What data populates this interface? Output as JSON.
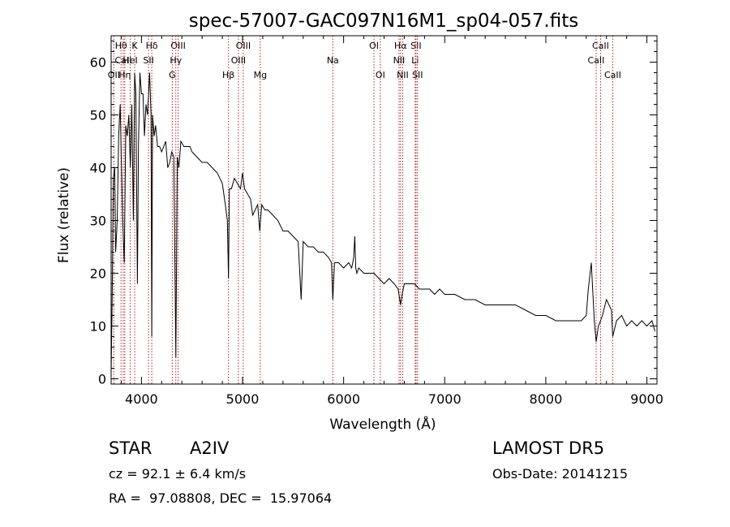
{
  "chart_data": {
    "type": "line",
    "title": "spec-57007-GAC097N16M1_sp04-057.fits",
    "xlabel": "Wavelength (Å)",
    "ylabel": "Flux (relative)",
    "xlim": [
      3700,
      9100
    ],
    "ylim": [
      -1,
      65
    ],
    "xticks": [
      4000,
      5000,
      6000,
      7000,
      8000,
      9000
    ],
    "xtick_labels": [
      "4000",
      "5000",
      "6000",
      "7000",
      "8000",
      "9000"
    ],
    "yticks": [
      0,
      10,
      20,
      30,
      40,
      50,
      60
    ],
    "ytick_labels": [
      "0",
      "10",
      "20",
      "30",
      "40",
      "50",
      "60"
    ],
    "grid": false,
    "series": [
      {
        "color": "#000000",
        "x": [
          3700,
          3710,
          3722,
          3735,
          3745,
          3760,
          3775,
          3790,
          3800,
          3815,
          3830,
          3845,
          3860,
          3875,
          3890,
          3905,
          3920,
          3933,
          3945,
          3960,
          3970,
          3985,
          4000,
          4015,
          4030,
          4045,
          4060,
          4080,
          4095,
          4102,
          4110,
          4125,
          4140,
          4160,
          4180,
          4200,
          4220,
          4240,
          4260,
          4280,
          4300,
          4320,
          4340,
          4355,
          4370,
          4390,
          4420,
          4450,
          4480,
          4500,
          4550,
          4600,
          4650,
          4700,
          4750,
          4800,
          4830,
          4850,
          4861,
          4870,
          4890,
          4920,
          4950,
          4980,
          5000,
          5020,
          5050,
          5080,
          5100,
          5150,
          5170,
          5190,
          5220,
          5250,
          5300,
          5350,
          5400,
          5450,
          5500,
          5550,
          5580,
          5600,
          5650,
          5700,
          5750,
          5800,
          5850,
          5880,
          5893,
          5910,
          5950,
          6000,
          6050,
          6080,
          6100,
          6110,
          6120,
          6130,
          6150,
          6200,
          6250,
          6300,
          6350,
          6400,
          6450,
          6500,
          6540,
          6563,
          6580,
          6600,
          6650,
          6700,
          6750,
          6800,
          6850,
          6900,
          6950,
          7000,
          7100,
          7200,
          7300,
          7400,
          7500,
          7600,
          7700,
          7800,
          7900,
          8000,
          8100,
          8200,
          8300,
          8350,
          8400,
          8420,
          8450,
          8480,
          8498,
          8520,
          8542,
          8560,
          8600,
          8650,
          8662,
          8700,
          8750,
          8800,
          8850,
          8900,
          8950,
          9000,
          9050,
          9080
        ],
        "values": [
          1,
          14,
          38,
          40,
          24,
          30,
          46,
          52,
          42,
          30,
          22,
          48,
          46,
          50,
          40,
          52,
          30,
          58,
          54,
          18,
          44,
          58,
          54,
          54,
          46,
          52,
          50,
          58,
          50,
          8,
          50,
          46,
          48,
          44,
          44,
          43,
          44,
          45,
          40,
          41,
          43,
          42,
          4,
          42,
          40,
          45,
          44,
          44,
          44,
          43,
          42,
          41,
          41,
          40,
          39,
          37,
          33,
          30,
          19,
          36,
          36,
          38,
          37,
          36,
          39,
          36,
          35,
          34,
          31,
          33,
          28,
          33,
          32,
          32,
          31,
          30,
          28,
          28,
          27,
          26,
          15,
          26,
          25,
          25,
          24,
          24,
          23,
          22,
          15,
          22,
          22,
          21,
          22,
          21,
          23,
          27,
          21,
          20,
          21,
          20,
          20,
          20,
          19,
          18,
          19,
          18,
          17,
          14,
          16,
          18,
          18,
          18,
          17,
          17,
          17,
          16,
          17,
          16,
          16,
          15,
          15,
          14,
          14,
          14,
          14,
          13,
          12,
          12,
          11,
          11,
          11,
          11,
          12,
          17,
          22,
          11,
          7,
          10,
          11,
          12,
          15,
          13,
          8,
          11,
          12,
          10,
          11,
          10,
          11,
          10,
          11,
          9
        ]
      }
    ],
    "line_markers": [
      {
        "label": "Hθ",
        "x": 3798,
        "row": 0
      },
      {
        "label": "CaII",
        "x": 3820,
        "row": 1
      },
      {
        "label": "OII",
        "x": 3727,
        "row": 2
      },
      {
        "label": "Hη",
        "x": 3835,
        "row": 2
      },
      {
        "label": "HeI",
        "x": 3889,
        "row": 1
      },
      {
        "label": "K",
        "x": 3933,
        "row": 0
      },
      {
        "label": "SII",
        "x": 4070,
        "row": 1
      },
      {
        "label": "Hδ",
        "x": 4102,
        "row": 0
      },
      {
        "label": "OIII",
        "x": 4363,
        "row": 0
      },
      {
        "label": "Hγ",
        "x": 4340,
        "row": 1
      },
      {
        "label": "G",
        "x": 4305,
        "row": 2
      },
      {
        "label": "Hβ",
        "x": 4861,
        "row": 2
      },
      {
        "label": "OIII",
        "x": 5007,
        "row": 0
      },
      {
        "label": "OIII",
        "x": 4959,
        "row": 1
      },
      {
        "label": "Mg",
        "x": 5175,
        "row": 2
      },
      {
        "label": "Na",
        "x": 5893,
        "row": 1
      },
      {
        "label": "OI",
        "x": 6300,
        "row": 0
      },
      {
        "label": "OI",
        "x": 6363,
        "row": 2
      },
      {
        "label": "Hα",
        "x": 6563,
        "row": 0
      },
      {
        "label": "SII",
        "x": 6716,
        "row": 0
      },
      {
        "label": "NII",
        "x": 6548,
        "row": 1
      },
      {
        "label": "Li",
        "x": 6708,
        "row": 1
      },
      {
        "label": "NII",
        "x": 6584,
        "row": 2
      },
      {
        "label": "SII",
        "x": 6731,
        "row": 2
      },
      {
        "label": "CaII",
        "x": 8542,
        "row": 0
      },
      {
        "label": "CaII",
        "x": 8498,
        "row": 1
      },
      {
        "label": "CaII",
        "x": 8662,
        "row": 2
      }
    ]
  },
  "info": {
    "object_class": "STAR",
    "subclass": "A2IV",
    "survey": "LAMOST DR5",
    "cz": "cz = 92.1 ± 6.4 km/s",
    "obs_date": "Obs-Date: 20141215",
    "coords": "RA =  97.08808, DEC =  15.97064"
  }
}
